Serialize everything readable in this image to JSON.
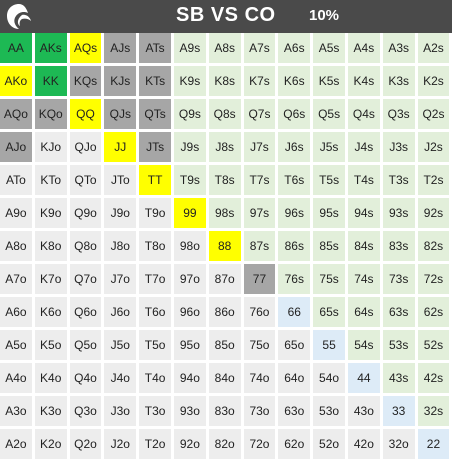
{
  "header": {
    "title": "SB VS CO",
    "percent": "10%"
  },
  "colors": {
    "header_bg": "#4a4a4a",
    "raise_green": "#1db954",
    "mixed_yellow": "#ffff00",
    "fold_gray": "#a6a6a6",
    "suited_light": "#e2efda",
    "pair_light": "#ddebf7",
    "offsuit_light": "#ededed"
  },
  "range": {
    "rows": [
      [
        {
          "label": "AA",
          "action": "raise"
        },
        {
          "label": "AKs",
          "action": "raise"
        },
        {
          "label": "AQs",
          "action": "mixed"
        },
        {
          "label": "AJs",
          "action": "fold"
        },
        {
          "label": "ATs",
          "action": "fold"
        },
        {
          "label": "A9s",
          "action": "suited"
        },
        {
          "label": "A8s",
          "action": "suited"
        },
        {
          "label": "A7s",
          "action": "suited"
        },
        {
          "label": "A6s",
          "action": "suited"
        },
        {
          "label": "A5s",
          "action": "suited"
        },
        {
          "label": "A4s",
          "action": "suited"
        },
        {
          "label": "A3s",
          "action": "suited"
        },
        {
          "label": "A2s",
          "action": "suited"
        }
      ],
      [
        {
          "label": "AKo",
          "action": "mixed"
        },
        {
          "label": "KK",
          "action": "raise"
        },
        {
          "label": "KQs",
          "action": "fold"
        },
        {
          "label": "KJs",
          "action": "fold"
        },
        {
          "label": "KTs",
          "action": "fold"
        },
        {
          "label": "K9s",
          "action": "suited"
        },
        {
          "label": "K8s",
          "action": "suited"
        },
        {
          "label": "K7s",
          "action": "suited"
        },
        {
          "label": "K6s",
          "action": "suited"
        },
        {
          "label": "K5s",
          "action": "suited"
        },
        {
          "label": "K4s",
          "action": "suited"
        },
        {
          "label": "K3s",
          "action": "suited"
        },
        {
          "label": "K2s",
          "action": "suited"
        }
      ],
      [
        {
          "label": "AQo",
          "action": "fold"
        },
        {
          "label": "KQo",
          "action": "fold"
        },
        {
          "label": "QQ",
          "action": "mixed"
        },
        {
          "label": "QJs",
          "action": "fold"
        },
        {
          "label": "QTs",
          "action": "fold"
        },
        {
          "label": "Q9s",
          "action": "suited"
        },
        {
          "label": "Q8s",
          "action": "suited"
        },
        {
          "label": "Q7s",
          "action": "suited"
        },
        {
          "label": "Q6s",
          "action": "suited"
        },
        {
          "label": "Q5s",
          "action": "suited"
        },
        {
          "label": "Q4s",
          "action": "suited"
        },
        {
          "label": "Q3s",
          "action": "suited"
        },
        {
          "label": "Q2s",
          "action": "suited"
        }
      ],
      [
        {
          "label": "AJo",
          "action": "fold"
        },
        {
          "label": "KJo",
          "action": "offsuit"
        },
        {
          "label": "QJo",
          "action": "offsuit"
        },
        {
          "label": "JJ",
          "action": "mixed"
        },
        {
          "label": "JTs",
          "action": "fold"
        },
        {
          "label": "J9s",
          "action": "suited"
        },
        {
          "label": "J8s",
          "action": "suited"
        },
        {
          "label": "J7s",
          "action": "suited"
        },
        {
          "label": "J6s",
          "action": "suited"
        },
        {
          "label": "J5s",
          "action": "suited"
        },
        {
          "label": "J4s",
          "action": "suited"
        },
        {
          "label": "J3s",
          "action": "suited"
        },
        {
          "label": "J2s",
          "action": "suited"
        }
      ],
      [
        {
          "label": "ATo",
          "action": "offsuit"
        },
        {
          "label": "KTo",
          "action": "offsuit"
        },
        {
          "label": "QTo",
          "action": "offsuit"
        },
        {
          "label": "JTo",
          "action": "offsuit"
        },
        {
          "label": "TT",
          "action": "mixed"
        },
        {
          "label": "T9s",
          "action": "suited"
        },
        {
          "label": "T8s",
          "action": "suited"
        },
        {
          "label": "T7s",
          "action": "suited"
        },
        {
          "label": "T6s",
          "action": "suited"
        },
        {
          "label": "T5s",
          "action": "suited"
        },
        {
          "label": "T4s",
          "action": "suited"
        },
        {
          "label": "T3s",
          "action": "suited"
        },
        {
          "label": "T2s",
          "action": "suited"
        }
      ],
      [
        {
          "label": "A9o",
          "action": "offsuit"
        },
        {
          "label": "K9o",
          "action": "offsuit"
        },
        {
          "label": "Q9o",
          "action": "offsuit"
        },
        {
          "label": "J9o",
          "action": "offsuit"
        },
        {
          "label": "T9o",
          "action": "offsuit"
        },
        {
          "label": "99",
          "action": "mixed"
        },
        {
          "label": "98s",
          "action": "suited"
        },
        {
          "label": "97s",
          "action": "suited"
        },
        {
          "label": "96s",
          "action": "suited"
        },
        {
          "label": "95s",
          "action": "suited"
        },
        {
          "label": "94s",
          "action": "suited"
        },
        {
          "label": "93s",
          "action": "suited"
        },
        {
          "label": "92s",
          "action": "suited"
        }
      ],
      [
        {
          "label": "A8o",
          "action": "offsuit"
        },
        {
          "label": "K8o",
          "action": "offsuit"
        },
        {
          "label": "Q8o",
          "action": "offsuit"
        },
        {
          "label": "J8o",
          "action": "offsuit"
        },
        {
          "label": "T8o",
          "action": "offsuit"
        },
        {
          "label": "98o",
          "action": "offsuit"
        },
        {
          "label": "88",
          "action": "mixed"
        },
        {
          "label": "87s",
          "action": "suited"
        },
        {
          "label": "86s",
          "action": "suited"
        },
        {
          "label": "85s",
          "action": "suited"
        },
        {
          "label": "84s",
          "action": "suited"
        },
        {
          "label": "83s",
          "action": "suited"
        },
        {
          "label": "82s",
          "action": "suited"
        }
      ],
      [
        {
          "label": "A7o",
          "action": "offsuit"
        },
        {
          "label": "K7o",
          "action": "offsuit"
        },
        {
          "label": "Q7o",
          "action": "offsuit"
        },
        {
          "label": "J7o",
          "action": "offsuit"
        },
        {
          "label": "T7o",
          "action": "offsuit"
        },
        {
          "label": "97o",
          "action": "offsuit"
        },
        {
          "label": "87o",
          "action": "offsuit"
        },
        {
          "label": "77",
          "action": "fold"
        },
        {
          "label": "76s",
          "action": "suited"
        },
        {
          "label": "75s",
          "action": "suited"
        },
        {
          "label": "74s",
          "action": "suited"
        },
        {
          "label": "73s",
          "action": "suited"
        },
        {
          "label": "72s",
          "action": "suited"
        }
      ],
      [
        {
          "label": "A6o",
          "action": "offsuit"
        },
        {
          "label": "K6o",
          "action": "offsuit"
        },
        {
          "label": "Q6o",
          "action": "offsuit"
        },
        {
          "label": "J6o",
          "action": "offsuit"
        },
        {
          "label": "T6o",
          "action": "offsuit"
        },
        {
          "label": "96o",
          "action": "offsuit"
        },
        {
          "label": "86o",
          "action": "offsuit"
        },
        {
          "label": "76o",
          "action": "offsuit"
        },
        {
          "label": "66",
          "action": "pair"
        },
        {
          "label": "65s",
          "action": "suited"
        },
        {
          "label": "64s",
          "action": "suited"
        },
        {
          "label": "63s",
          "action": "suited"
        },
        {
          "label": "62s",
          "action": "suited"
        }
      ],
      [
        {
          "label": "A5o",
          "action": "offsuit"
        },
        {
          "label": "K5o",
          "action": "offsuit"
        },
        {
          "label": "Q5o",
          "action": "offsuit"
        },
        {
          "label": "J5o",
          "action": "offsuit"
        },
        {
          "label": "T5o",
          "action": "offsuit"
        },
        {
          "label": "95o",
          "action": "offsuit"
        },
        {
          "label": "85o",
          "action": "offsuit"
        },
        {
          "label": "75o",
          "action": "offsuit"
        },
        {
          "label": "65o",
          "action": "offsuit"
        },
        {
          "label": "55",
          "action": "pair"
        },
        {
          "label": "54s",
          "action": "suited"
        },
        {
          "label": "53s",
          "action": "suited"
        },
        {
          "label": "52s",
          "action": "suited"
        }
      ],
      [
        {
          "label": "A4o",
          "action": "offsuit"
        },
        {
          "label": "K4o",
          "action": "offsuit"
        },
        {
          "label": "Q4o",
          "action": "offsuit"
        },
        {
          "label": "J4o",
          "action": "offsuit"
        },
        {
          "label": "T4o",
          "action": "offsuit"
        },
        {
          "label": "94o",
          "action": "offsuit"
        },
        {
          "label": "84o",
          "action": "offsuit"
        },
        {
          "label": "74o",
          "action": "offsuit"
        },
        {
          "label": "64o",
          "action": "offsuit"
        },
        {
          "label": "54o",
          "action": "offsuit"
        },
        {
          "label": "44",
          "action": "pair"
        },
        {
          "label": "43s",
          "action": "suited"
        },
        {
          "label": "42s",
          "action": "suited"
        }
      ],
      [
        {
          "label": "A3o",
          "action": "offsuit"
        },
        {
          "label": "K3o",
          "action": "offsuit"
        },
        {
          "label": "Q3o",
          "action": "offsuit"
        },
        {
          "label": "J3o",
          "action": "offsuit"
        },
        {
          "label": "T3o",
          "action": "offsuit"
        },
        {
          "label": "93o",
          "action": "offsuit"
        },
        {
          "label": "83o",
          "action": "offsuit"
        },
        {
          "label": "73o",
          "action": "offsuit"
        },
        {
          "label": "63o",
          "action": "offsuit"
        },
        {
          "label": "53o",
          "action": "offsuit"
        },
        {
          "label": "43o",
          "action": "offsuit"
        },
        {
          "label": "33",
          "action": "pair"
        },
        {
          "label": "32s",
          "action": "suited"
        }
      ],
      [
        {
          "label": "A2o",
          "action": "offsuit"
        },
        {
          "label": "K2o",
          "action": "offsuit"
        },
        {
          "label": "Q2o",
          "action": "offsuit"
        },
        {
          "label": "J2o",
          "action": "offsuit"
        },
        {
          "label": "T2o",
          "action": "offsuit"
        },
        {
          "label": "92o",
          "action": "offsuit"
        },
        {
          "label": "82o",
          "action": "offsuit"
        },
        {
          "label": "72o",
          "action": "offsuit"
        },
        {
          "label": "62o",
          "action": "offsuit"
        },
        {
          "label": "52o",
          "action": "offsuit"
        },
        {
          "label": "42o",
          "action": "offsuit"
        },
        {
          "label": "32o",
          "action": "offsuit"
        },
        {
          "label": "22",
          "action": "pair"
        }
      ]
    ]
  }
}
